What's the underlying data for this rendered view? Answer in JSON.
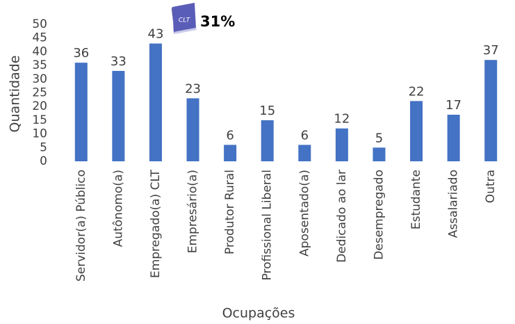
{
  "chart_data": {
    "type": "bar",
    "categories": [
      "Servidor(a) Público",
      "Autônomo(a)",
      "Empregado(a) CLT",
      "Empresário(a)",
      "Produtor Rural",
      "Profissional Liberal",
      "Aposentado(a)",
      "Dedicado ao lar",
      "Desempregado",
      "Estudante",
      "Assalariado",
      "Outra"
    ],
    "values": [
      36,
      33,
      43,
      23,
      6,
      15,
      6,
      12,
      5,
      22,
      17,
      37
    ],
    "color": "#4472c4",
    "ylim": [
      0,
      50
    ],
    "yticks": [
      0,
      5,
      10,
      15,
      20,
      25,
      30,
      35,
      40,
      45,
      50
    ],
    "y_label": "Quantidade",
    "x_label": "Ocupações",
    "annotation": {
      "icon_text": "CLT",
      "text": "31%"
    },
    "grid": false
  }
}
